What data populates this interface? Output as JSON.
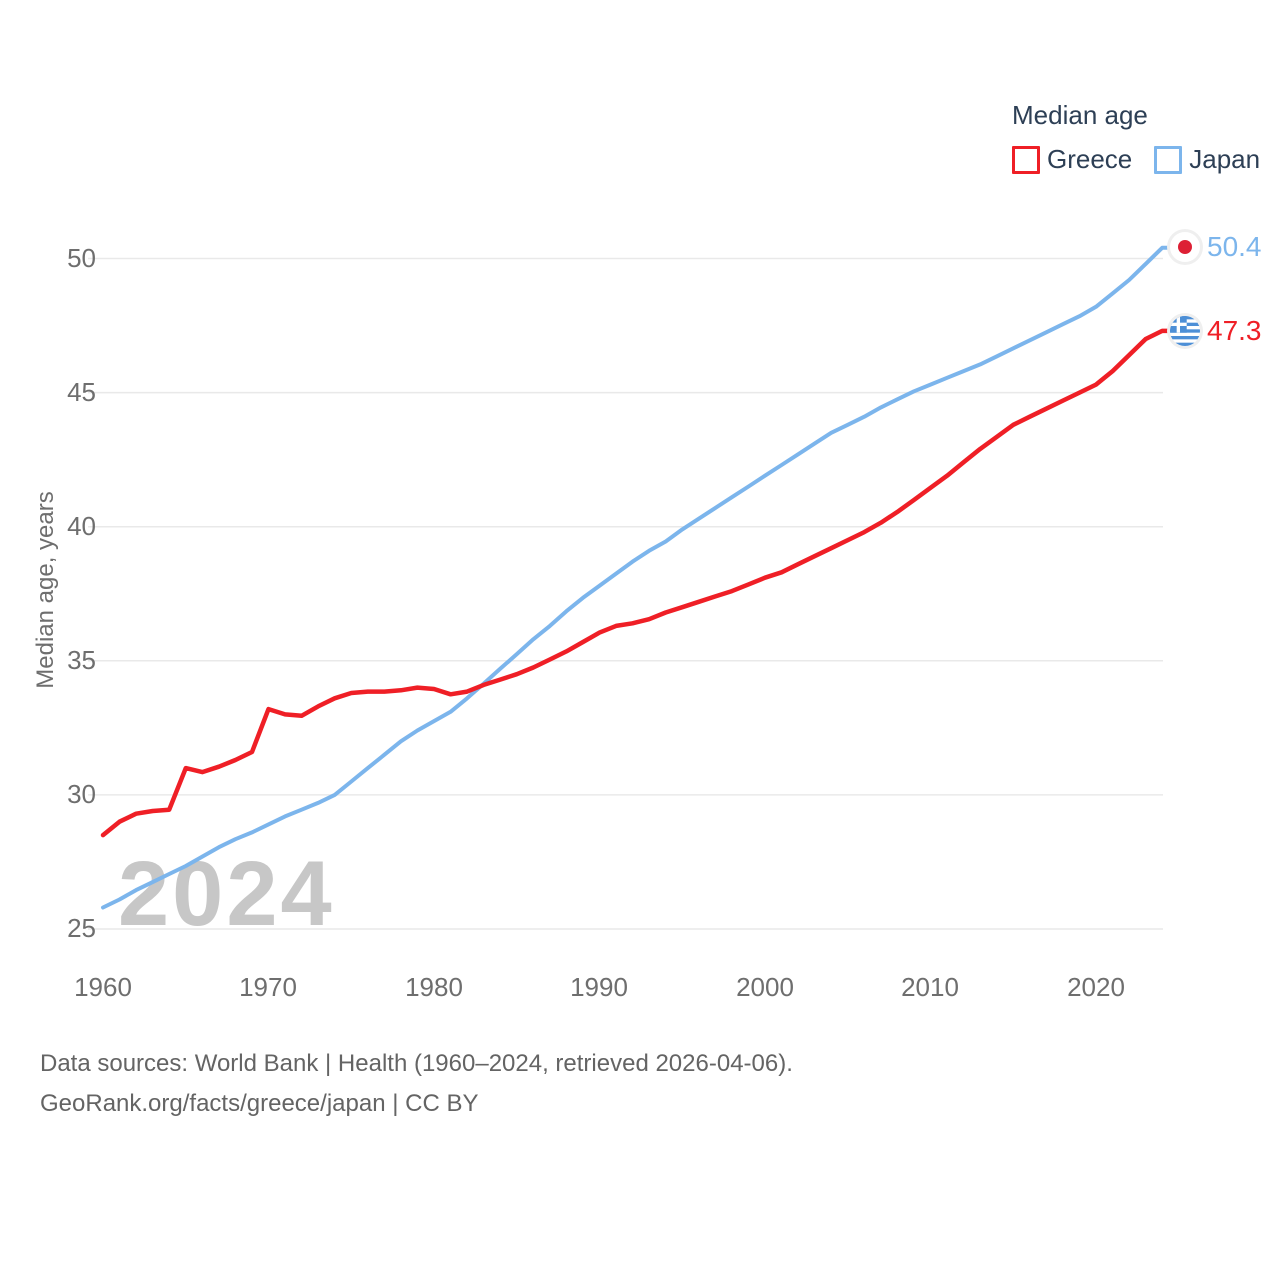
{
  "legend": {
    "title": "Median age",
    "items": [
      {
        "label": "Greece",
        "color": "#ef1f26"
      },
      {
        "label": "Japan",
        "color": "#7cb5ec"
      }
    ]
  },
  "watermark": "2024",
  "end_markers": [
    {
      "series": "Japan",
      "value": "50.4",
      "flag": "japan-flag",
      "color": "#7cb5ec"
    },
    {
      "series": "Greece",
      "value": "47.3",
      "flag": "greece-flag",
      "color": "#ef1f26"
    }
  ],
  "footer": {
    "line1": "Data sources: World Bank | Health (1960–2024, retrieved 2026-04-06).",
    "line2": "GeoRank.org/facts/greece/japan | CC BY"
  },
  "chart_data": {
    "type": "line",
    "title": "Median age",
    "ylabel": "Median age, years",
    "x_start": 1960,
    "x_end": 2024,
    "x_ticks": [
      "1960",
      "1970",
      "1980",
      "1990",
      "2000",
      "2010",
      "2020"
    ],
    "y_ticks": [
      "50",
      "45",
      "40",
      "35",
      "30",
      "25"
    ],
    "ylim": [
      25,
      50
    ],
    "grid": "horizontal",
    "legend_position": "top-right",
    "series": [
      {
        "name": "Greece",
        "color": "#ef1f26",
        "end_value": 47.3,
        "values": [
          28.5,
          29.0,
          29.3,
          29.4,
          29.45,
          31.0,
          30.85,
          31.05,
          31.3,
          31.6,
          33.2,
          33.0,
          32.95,
          33.3,
          33.6,
          33.8,
          33.85,
          33.85,
          33.9,
          34.0,
          33.95,
          33.75,
          33.85,
          34.1,
          34.3,
          34.5,
          34.75,
          35.05,
          35.35,
          35.7,
          36.05,
          36.3,
          36.4,
          36.55,
          36.8,
          37.0,
          37.2,
          37.4,
          37.6,
          37.85,
          38.1,
          38.3,
          38.6,
          38.9,
          39.2,
          39.5,
          39.8,
          40.15,
          40.55,
          41.0,
          41.45,
          41.9,
          42.4,
          42.9,
          43.35,
          43.8,
          44.1,
          44.4,
          44.7,
          45.0,
          45.3,
          45.8,
          46.4,
          47.0,
          47.3
        ]
      },
      {
        "name": "Japan",
        "color": "#7cb5ec",
        "end_value": 50.4,
        "values": [
          25.8,
          26.1,
          26.45,
          26.75,
          27.05,
          27.35,
          27.7,
          28.05,
          28.35,
          28.6,
          28.9,
          29.2,
          29.45,
          29.7,
          30.0,
          30.5,
          31.0,
          31.5,
          32.0,
          32.4,
          32.75,
          33.1,
          33.6,
          34.15,
          34.7,
          35.25,
          35.8,
          36.3,
          36.85,
          37.35,
          37.8,
          38.25,
          38.7,
          39.1,
          39.45,
          39.9,
          40.3,
          40.7,
          41.1,
          41.5,
          41.9,
          42.3,
          42.7,
          43.1,
          43.5,
          43.8,
          44.1,
          44.45,
          44.75,
          45.05,
          45.3,
          45.55,
          45.8,
          46.05,
          46.35,
          46.65,
          46.95,
          47.25,
          47.55,
          47.85,
          48.2,
          48.7,
          49.2,
          49.8,
          50.4
        ]
      }
    ]
  }
}
